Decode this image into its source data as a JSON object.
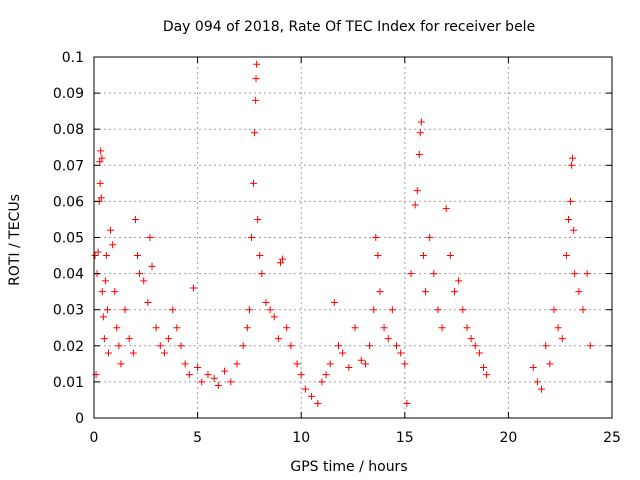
{
  "chart_data": {
    "type": "scatter",
    "title": "Day 094 of 2018, Rate Of TEC Index for receiver bele",
    "xlabel": "GPS time / hours",
    "ylabel": "ROTI / TECUs",
    "xlim": [
      0,
      25
    ],
    "ylim": [
      0,
      0.1
    ],
    "x_ticks": [
      "0",
      "5",
      "10",
      "15",
      "20",
      "25"
    ],
    "y_ticks": [
      "0",
      "0.01",
      "0.02",
      "0.03",
      "0.04",
      "0.05",
      "0.06",
      "0.07",
      "0.08",
      "0.09",
      "0.1"
    ],
    "grid": true,
    "marker": "plus",
    "color": "#ff0000",
    "series": [
      {
        "points": [
          [
            0.05,
            0.045
          ],
          [
            0.1,
            0.012
          ],
          [
            0.15,
            0.04
          ],
          [
            0.2,
            0.046
          ],
          [
            0.25,
            0.06
          ],
          [
            0.28,
            0.071
          ],
          [
            0.3,
            0.065
          ],
          [
            0.32,
            0.074
          ],
          [
            0.35,
            0.061
          ],
          [
            0.38,
            0.072
          ],
          [
            0.4,
            0.035
          ],
          [
            0.45,
            0.028
          ],
          [
            0.5,
            0.022
          ],
          [
            0.55,
            0.038
          ],
          [
            0.6,
            0.045
          ],
          [
            0.65,
            0.03
          ],
          [
            0.7,
            0.018
          ],
          [
            0.8,
            0.052
          ],
          [
            0.9,
            0.048
          ],
          [
            1.0,
            0.035
          ],
          [
            1.1,
            0.025
          ],
          [
            1.2,
            0.02
          ],
          [
            1.3,
            0.015
          ],
          [
            1.5,
            0.03
          ],
          [
            1.7,
            0.022
          ],
          [
            1.9,
            0.018
          ],
          [
            2.0,
            0.055
          ],
          [
            2.1,
            0.045
          ],
          [
            2.2,
            0.04
          ],
          [
            2.4,
            0.038
          ],
          [
            2.6,
            0.032
          ],
          [
            2.7,
            0.05
          ],
          [
            2.8,
            0.042
          ],
          [
            3.0,
            0.025
          ],
          [
            3.2,
            0.02
          ],
          [
            3.4,
            0.018
          ],
          [
            3.6,
            0.022
          ],
          [
            3.8,
            0.03
          ],
          [
            4.0,
            0.025
          ],
          [
            4.2,
            0.02
          ],
          [
            4.4,
            0.015
          ],
          [
            4.6,
            0.012
          ],
          [
            4.8,
            0.036
          ],
          [
            5.0,
            0.014
          ],
          [
            5.2,
            0.01
          ],
          [
            5.5,
            0.012
          ],
          [
            5.8,
            0.011
          ],
          [
            6.0,
            0.009
          ],
          [
            6.3,
            0.013
          ],
          [
            6.6,
            0.01
          ],
          [
            6.9,
            0.015
          ],
          [
            7.2,
            0.02
          ],
          [
            7.4,
            0.025
          ],
          [
            7.5,
            0.03
          ],
          [
            7.6,
            0.05
          ],
          [
            7.7,
            0.065
          ],
          [
            7.75,
            0.079
          ],
          [
            7.8,
            0.088
          ],
          [
            7.82,
            0.094
          ],
          [
            7.85,
            0.098
          ],
          [
            7.9,
            0.055
          ],
          [
            8.0,
            0.045
          ],
          [
            8.1,
            0.04
          ],
          [
            8.3,
            0.032
          ],
          [
            8.5,
            0.03
          ],
          [
            8.7,
            0.028
          ],
          [
            8.9,
            0.022
          ],
          [
            9.0,
            0.043
          ],
          [
            9.1,
            0.044
          ],
          [
            9.3,
            0.025
          ],
          [
            9.5,
            0.02
          ],
          [
            9.8,
            0.015
          ],
          [
            10.0,
            0.012
          ],
          [
            10.2,
            0.008
          ],
          [
            10.5,
            0.006
          ],
          [
            10.8,
            0.004
          ],
          [
            11.0,
            0.01
          ],
          [
            11.2,
            0.012
          ],
          [
            11.4,
            0.015
          ],
          [
            11.6,
            0.032
          ],
          [
            11.8,
            0.02
          ],
          [
            12.0,
            0.018
          ],
          [
            12.3,
            0.014
          ],
          [
            12.6,
            0.025
          ],
          [
            12.9,
            0.016
          ],
          [
            13.1,
            0.015
          ],
          [
            13.3,
            0.02
          ],
          [
            13.5,
            0.03
          ],
          [
            13.6,
            0.05
          ],
          [
            13.7,
            0.045
          ],
          [
            13.8,
            0.035
          ],
          [
            14.0,
            0.025
          ],
          [
            14.2,
            0.022
          ],
          [
            14.4,
            0.03
          ],
          [
            14.6,
            0.02
          ],
          [
            14.8,
            0.018
          ],
          [
            15.0,
            0.015
          ],
          [
            15.1,
            0.004
          ],
          [
            15.3,
            0.04
          ],
          [
            15.5,
            0.059
          ],
          [
            15.6,
            0.063
          ],
          [
            15.7,
            0.073
          ],
          [
            15.75,
            0.079
          ],
          [
            15.8,
            0.082
          ],
          [
            15.9,
            0.045
          ],
          [
            16.0,
            0.035
          ],
          [
            16.2,
            0.05
          ],
          [
            16.4,
            0.04
          ],
          [
            16.6,
            0.03
          ],
          [
            16.8,
            0.025
          ],
          [
            17.0,
            0.058
          ],
          [
            17.2,
            0.045
          ],
          [
            17.4,
            0.035
          ],
          [
            17.6,
            0.038
          ],
          [
            17.8,
            0.03
          ],
          [
            18.0,
            0.025
          ],
          [
            18.2,
            0.022
          ],
          [
            18.4,
            0.02
          ],
          [
            18.6,
            0.018
          ],
          [
            18.8,
            0.014
          ],
          [
            18.95,
            0.012
          ],
          [
            21.2,
            0.014
          ],
          [
            21.4,
            0.01
          ],
          [
            21.6,
            0.008
          ],
          [
            21.8,
            0.02
          ],
          [
            22.0,
            0.015
          ],
          [
            22.2,
            0.03
          ],
          [
            22.4,
            0.025
          ],
          [
            22.6,
            0.022
          ],
          [
            22.8,
            0.045
          ],
          [
            22.9,
            0.055
          ],
          [
            23.0,
            0.06
          ],
          [
            23.05,
            0.07
          ],
          [
            23.1,
            0.072
          ],
          [
            23.15,
            0.052
          ],
          [
            23.2,
            0.04
          ],
          [
            23.4,
            0.035
          ],
          [
            23.6,
            0.03
          ],
          [
            23.8,
            0.04
          ],
          [
            23.95,
            0.02
          ]
        ]
      }
    ]
  }
}
